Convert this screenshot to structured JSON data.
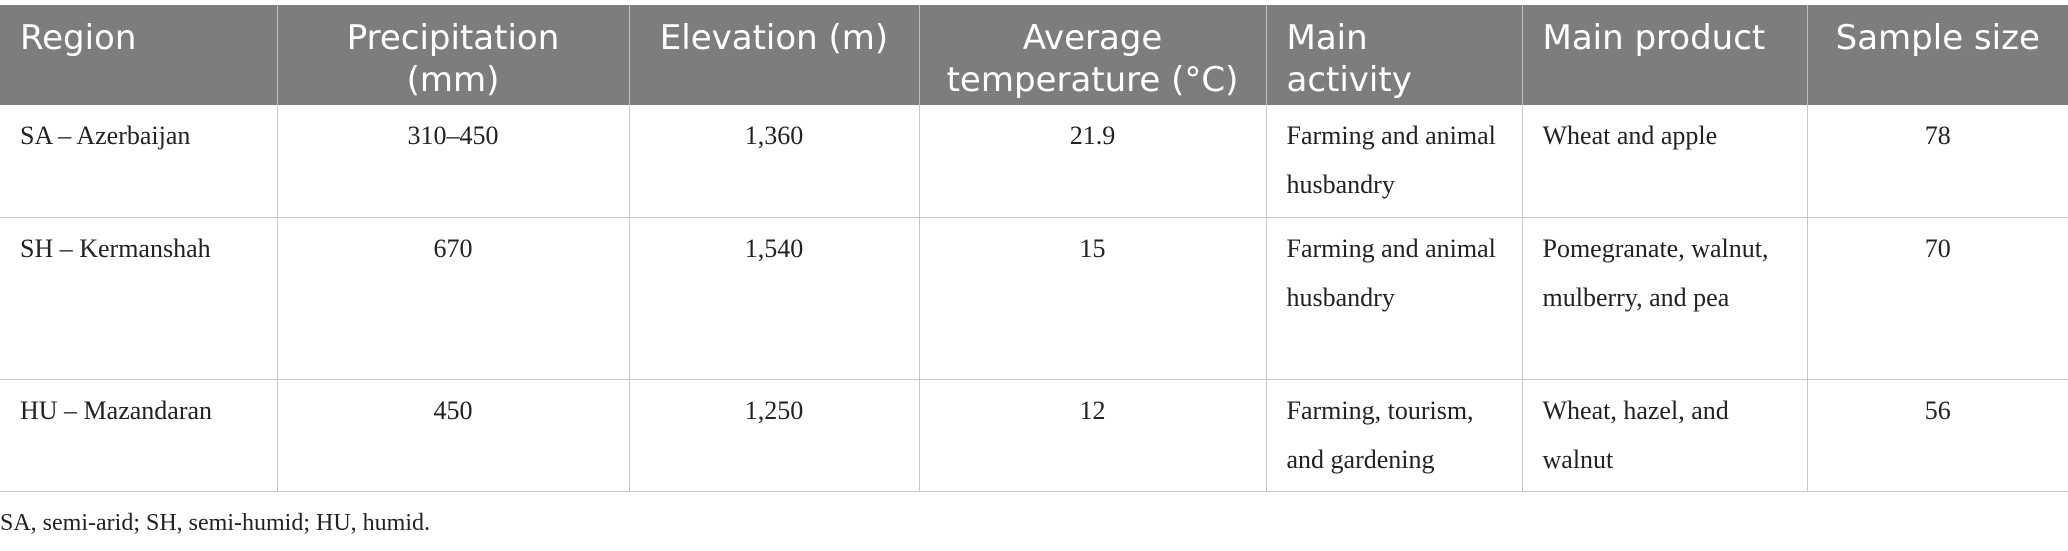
{
  "table": {
    "headers": [
      "Region",
      "Precipitation (mm)",
      "Elevation (m)",
      "Average temperature (°C)",
      "Main activity",
      "Main product",
      "Sample size"
    ],
    "rows": [
      {
        "region": "SA – Azerbaijan",
        "precipitation": "310–450",
        "elevation": "1,360",
        "temperature": "21.9",
        "activity": "Farming and animal husbandry",
        "product": "Wheat and apple",
        "sample_size": "78"
      },
      {
        "region": "SH – Kermanshah",
        "precipitation": "670",
        "elevation": "1,540",
        "temperature": "15",
        "activity": "Farming and animal husbandry",
        "product": "Pomegranate, walnut, mulberry, and pea",
        "sample_size": "70"
      },
      {
        "region": "HU – Mazandaran",
        "precipitation": "450",
        "elevation": "1,250",
        "temperature": "12",
        "activity": "Farming, tourism, and gardening",
        "product": "Wheat, hazel, and walnut",
        "sample_size": "56"
      }
    ]
  },
  "footnote": "SA, semi-arid; SH, semi-humid; HU, humid."
}
